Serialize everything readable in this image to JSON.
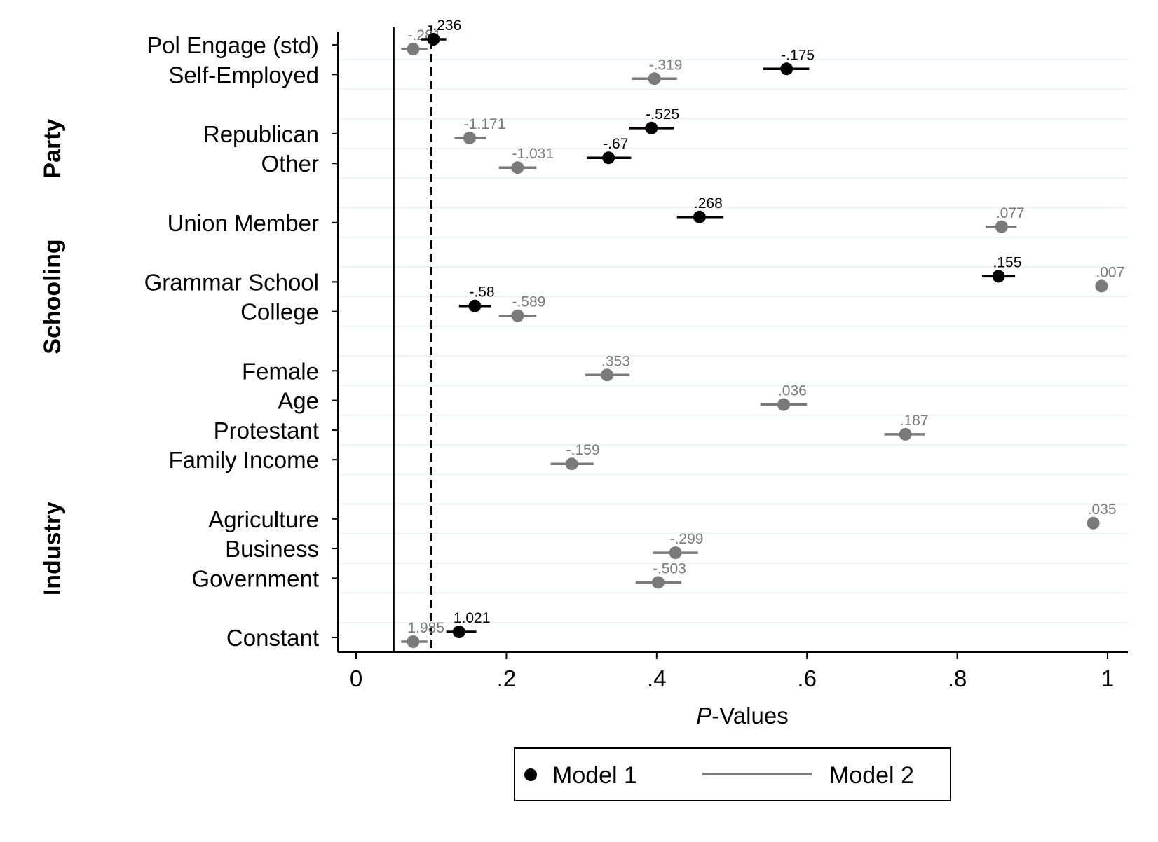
{
  "chart_data": {
    "type": "scatter",
    "xlabel_italic": "P",
    "xlabel_rest": "-Values",
    "xlim": [
      0,
      1
    ],
    "xticks": [
      {
        "value": 0,
        "label": "0"
      },
      {
        "value": 0.2,
        "label": ".2"
      },
      {
        "value": 0.4,
        "label": ".4"
      },
      {
        "value": 0.6,
        "label": ".6"
      },
      {
        "value": 0.8,
        "label": ".8"
      },
      {
        "value": 1,
        "label": "1"
      }
    ],
    "reference_lines": [
      {
        "value": 0.05,
        "style": "solid"
      },
      {
        "value": 0.1,
        "style": "dashed"
      }
    ],
    "groups": [
      {
        "label": "Party",
        "rows": [
          "Republican",
          "Other"
        ]
      },
      {
        "label": "Schooling",
        "rows": [
          "Grammar School",
          "College"
        ]
      },
      {
        "label": "Industry",
        "rows": [
          "Agriculture",
          "Business",
          "Government"
        ]
      }
    ],
    "categories": [
      "Pol Engage (std)",
      "Self-Employed",
      "Republican",
      "Other",
      "Union Member",
      "Grammar School",
      "College",
      "Female",
      "Age",
      "Protestant",
      "Family Income",
      "Agriculture",
      "Business",
      "Government",
      "Constant"
    ],
    "series": [
      {
        "name": "Model 1",
        "color": "#000000",
        "points": [
          {
            "row": "Pol Engage (std)",
            "p": 0.103,
            "lo": 0.086,
            "hi": 0.12,
            "label": "-.236"
          },
          {
            "row": "Self-Employed",
            "p": 0.573,
            "lo": 0.542,
            "hi": 0.603,
            "label": "-.175"
          },
          {
            "row": "Republican",
            "p": 0.393,
            "lo": 0.363,
            "hi": 0.423,
            "label": "-.525"
          },
          {
            "row": "Other",
            "p": 0.336,
            "lo": 0.307,
            "hi": 0.366,
            "label": "-.67"
          },
          {
            "row": "Union Member",
            "p": 0.457,
            "lo": 0.427,
            "hi": 0.489,
            "label": ".268"
          },
          {
            "row": "Grammar School",
            "p": 0.855,
            "lo": 0.833,
            "hi": 0.877,
            "label": ".155"
          },
          {
            "row": "College",
            "p": 0.158,
            "lo": 0.137,
            "hi": 0.18,
            "label": "-.58"
          },
          {
            "row": "Constant",
            "p": 0.137,
            "lo": 0.12,
            "hi": 0.16,
            "label": "1.021"
          }
        ]
      },
      {
        "name": "Model 2",
        "color": "#7a7a7a",
        "points": [
          {
            "row": "Pol Engage (std)",
            "p": 0.076,
            "lo": 0.06,
            "hi": 0.095,
            "label": "-.281"
          },
          {
            "row": "Self-Employed",
            "p": 0.397,
            "lo": 0.367,
            "hi": 0.427,
            "label": "-.319"
          },
          {
            "row": "Republican",
            "p": 0.151,
            "lo": 0.131,
            "hi": 0.173,
            "label": "-1.171"
          },
          {
            "row": "Other",
            "p": 0.215,
            "lo": 0.19,
            "hi": 0.24,
            "label": "-1.031"
          },
          {
            "row": "Union Member",
            "p": 0.859,
            "lo": 0.838,
            "hi": 0.879,
            "label": ".077"
          },
          {
            "row": "Grammar School",
            "p": 0.992,
            "lo": 0.989,
            "hi": 0.995,
            "label": ".007"
          },
          {
            "row": "College",
            "p": 0.215,
            "lo": 0.19,
            "hi": 0.24,
            "label": "-.589"
          },
          {
            "row": "Female",
            "p": 0.334,
            "lo": 0.305,
            "hi": 0.364,
            "label": ".353"
          },
          {
            "row": "Age",
            "p": 0.569,
            "lo": 0.538,
            "hi": 0.6,
            "label": ".036"
          },
          {
            "row": "Protestant",
            "p": 0.731,
            "lo": 0.703,
            "hi": 0.757,
            "label": ".187"
          },
          {
            "row": "Family Income",
            "p": 0.287,
            "lo": 0.259,
            "hi": 0.316,
            "label": "-.159"
          },
          {
            "row": "Agriculture",
            "p": 0.981,
            "lo": 0.976,
            "hi": 0.986,
            "label": ".035"
          },
          {
            "row": "Business",
            "p": 0.425,
            "lo": 0.395,
            "hi": 0.455,
            "label": "-.299"
          },
          {
            "row": "Government",
            "p": 0.402,
            "lo": 0.372,
            "hi": 0.433,
            "label": "-.503"
          },
          {
            "row": "Constant",
            "p": 0.076,
            "lo": 0.06,
            "hi": 0.095,
            "label": "1.985"
          }
        ]
      }
    ],
    "legend": {
      "position": "bottom-center",
      "entries": [
        {
          "label": "Model 1",
          "symbol": "dot"
        },
        {
          "label": "Model 2",
          "symbol": "line"
        }
      ]
    }
  }
}
